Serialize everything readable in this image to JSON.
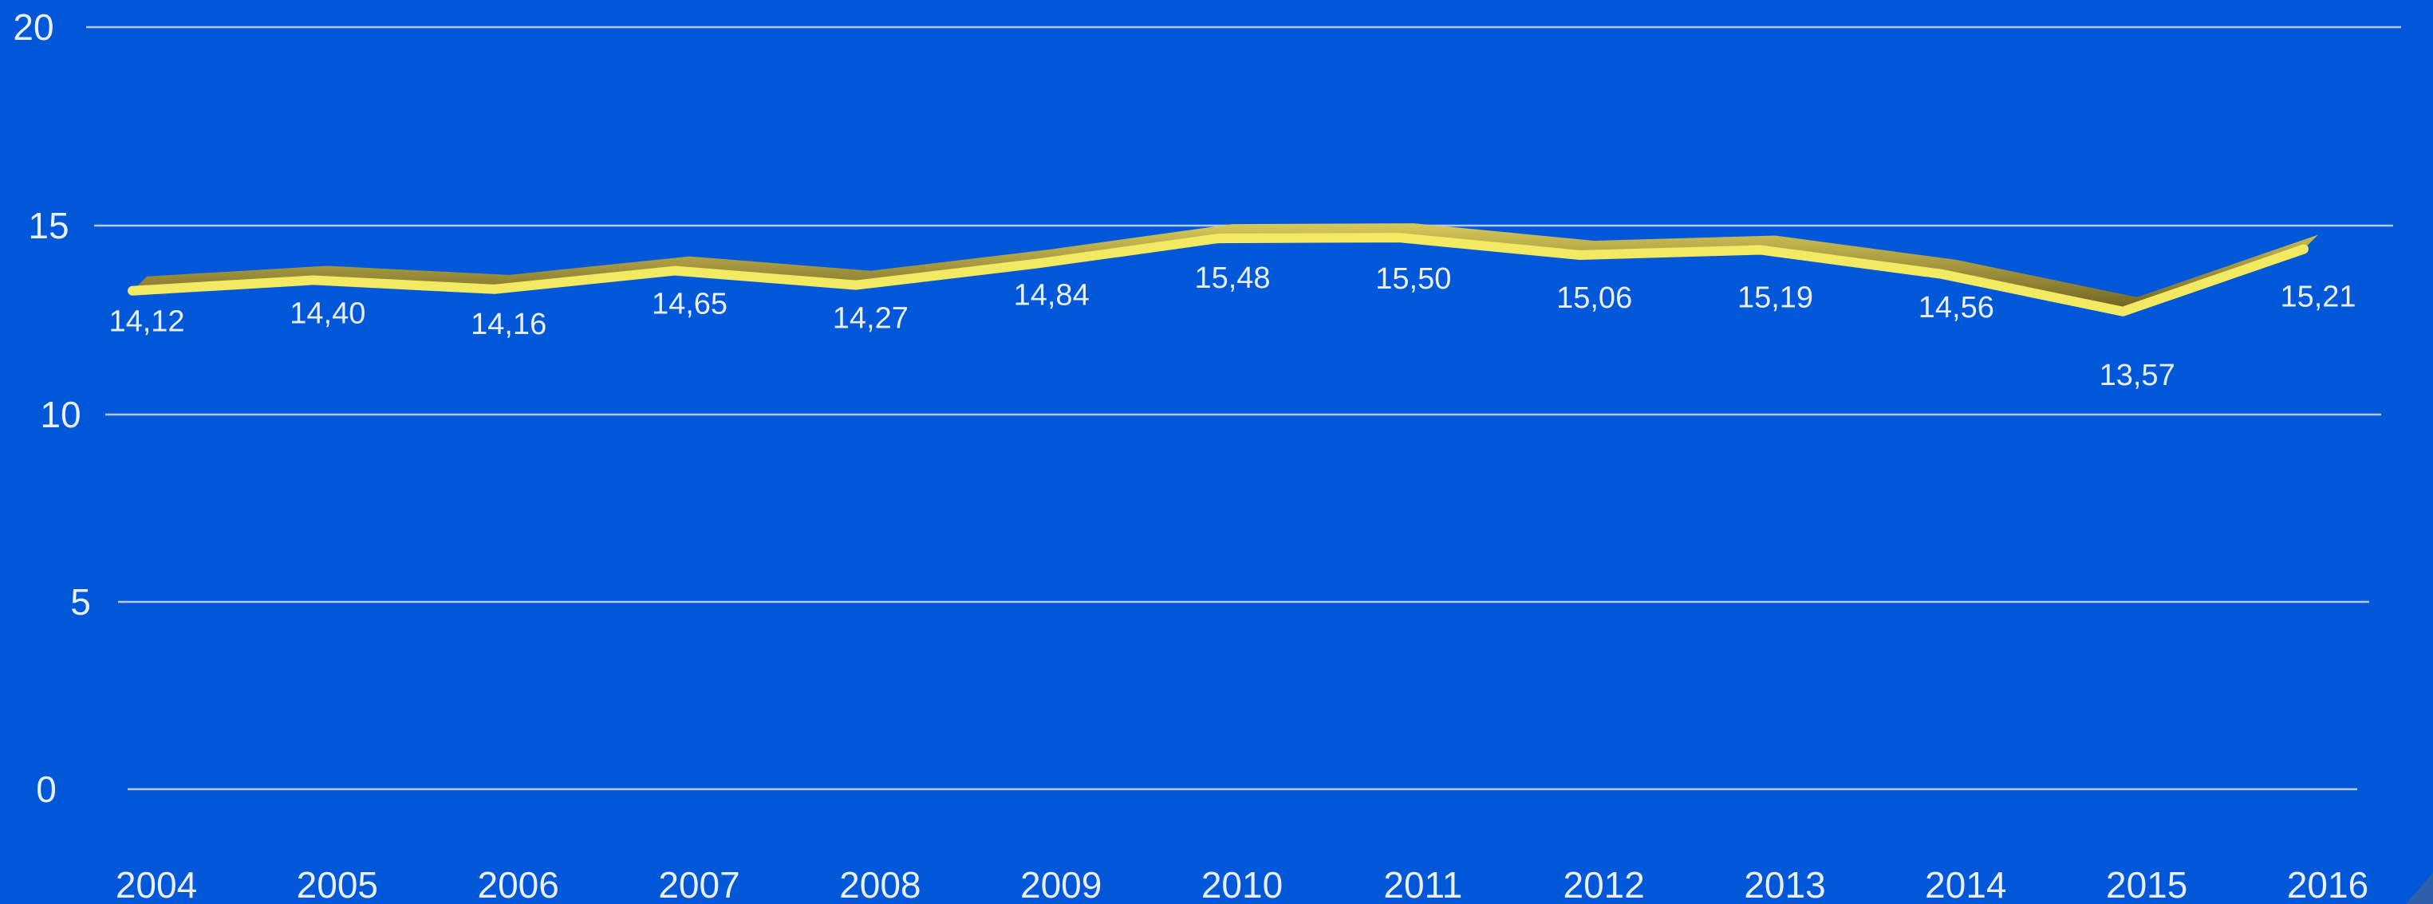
{
  "chart_data": {
    "type": "line",
    "title": "",
    "xlabel": "",
    "ylabel": "",
    "categories": [
      "2004",
      "2005",
      "2006",
      "2007",
      "2008",
      "2009",
      "2010",
      "2011",
      "2012",
      "2013",
      "2014",
      "2015",
      "2016"
    ],
    "series": [
      {
        "values": [
          14.12,
          14.4,
          14.16,
          14.65,
          14.27,
          14.84,
          15.48,
          15.5,
          15.06,
          15.19,
          14.56,
          13.57,
          15.21
        ],
        "labels": [
          "14,12",
          "14,40",
          "14,16",
          "14,65",
          "14,27",
          "14,84",
          "15,48",
          "15,50",
          "15,06",
          "15,19",
          "14,56",
          "13,57",
          "15,21"
        ],
        "color": "#f3ea63"
      }
    ],
    "yticks": [
      0,
      5,
      10,
      15,
      20
    ],
    "ylim": [
      0,
      20
    ],
    "grid": true,
    "legend": "none",
    "colors": {
      "background": "#0057d8",
      "line": "#f3ea63",
      "line_shadow": "#8a7a1f",
      "grid": "#b7c9ee",
      "text": "#e9efff"
    }
  }
}
